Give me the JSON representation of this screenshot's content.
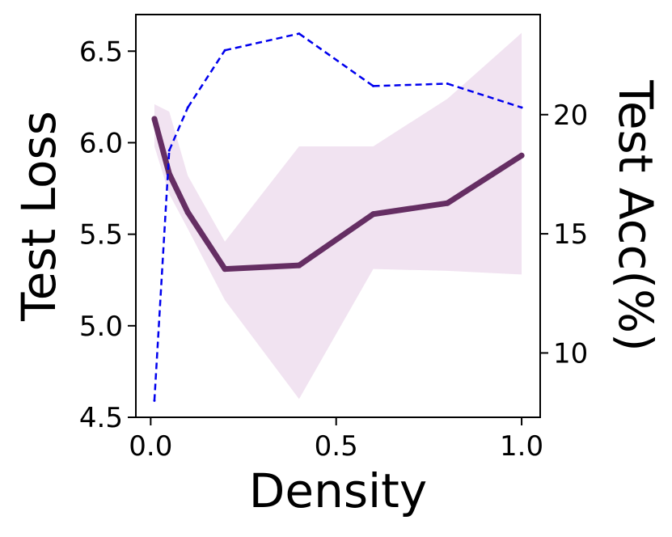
{
  "chart_data": {
    "type": "line",
    "xlabel": "Density",
    "ylabel_left": "Test Loss",
    "ylabel_right": "Test Acc(%)",
    "xlim": [
      -0.04,
      1.05
    ],
    "ylim_left": [
      4.5,
      6.7
    ],
    "ylim_right": [
      7.3,
      24.2
    ],
    "x_ticks": [
      0.0,
      0.5,
      1.0
    ],
    "x_tick_labels": [
      "0.0",
      "0.5",
      "1.0"
    ],
    "y_left_ticks": [
      4.5,
      5.0,
      5.5,
      6.0,
      6.5
    ],
    "y_left_tick_labels": [
      "4.5",
      "5.0",
      "5.5",
      "6.0",
      "6.5"
    ],
    "y_right_ticks": [
      10,
      15,
      20
    ],
    "y_right_tick_labels": [
      "10",
      "15",
      "20"
    ],
    "grid": false,
    "legend": "none",
    "series": [
      {
        "type": "line",
        "axis": "left",
        "color": "#652e63",
        "linestyle": "solid",
        "x": [
          0.01,
          0.05,
          0.1,
          0.2,
          0.4,
          0.6,
          0.8,
          1.0
        ],
        "y": [
          6.13,
          5.83,
          5.62,
          5.31,
          5.33,
          5.61,
          5.67,
          5.93
        ]
      },
      {
        "type": "band",
        "axis": "left",
        "color": "#f1e3f1",
        "x": [
          0.01,
          0.05,
          0.1,
          0.2,
          0.4,
          0.6,
          0.8,
          1.0
        ],
        "upper": [
          6.21,
          6.17,
          5.82,
          5.46,
          5.98,
          5.98,
          6.24,
          6.6
        ],
        "lower": [
          5.98,
          5.72,
          5.53,
          5.14,
          4.6,
          5.31,
          5.3,
          5.28
        ]
      },
      {
        "type": "line",
        "axis": "right",
        "color": "#0000ee",
        "linestyle": "dashed",
        "x": [
          0.01,
          0.05,
          0.1,
          0.2,
          0.4,
          0.6,
          0.8,
          1.0
        ],
        "y": [
          8.0,
          18.5,
          20.3,
          22.7,
          23.4,
          21.2,
          21.3,
          20.3
        ]
      }
    ]
  }
}
